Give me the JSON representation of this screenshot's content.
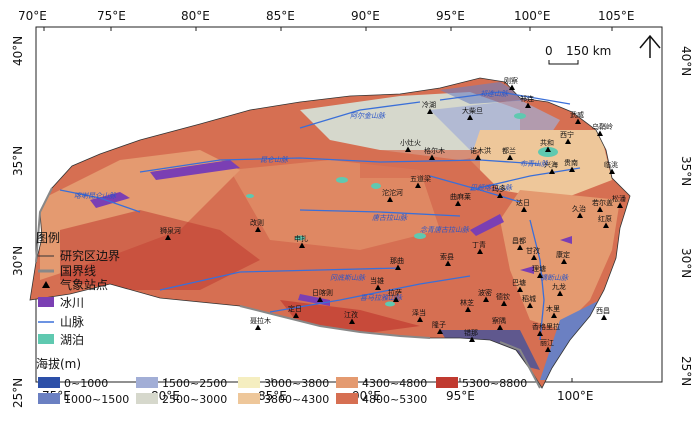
{
  "axes": {
    "top_lon": [
      "70°E",
      "75°E",
      "80°E",
      "85°E",
      "90°E",
      "95°E",
      "100°E",
      "105°E"
    ],
    "bottom_lon": [
      "75°E",
      "80°E",
      "85°E",
      "90°E",
      "95°E",
      "100°E"
    ],
    "left_lat": [
      "40°N",
      "35°N",
      "30°N",
      "25°N"
    ],
    "right_lat": [
      "40°N",
      "35°N",
      "30°N",
      "25°N"
    ]
  },
  "scale_bar": {
    "zero": "0",
    "distance": "150 km"
  },
  "legend": {
    "title": "图例",
    "items": [
      {
        "label": "研究区边界",
        "symbol": "line",
        "color": "#333333"
      },
      {
        "label": "国界线",
        "symbol": "thick-line",
        "color": "#888888"
      },
      {
        "label": "气象站点",
        "symbol": "triangle",
        "color": "#000000"
      },
      {
        "label": "冰川",
        "symbol": "patch",
        "color": "#7b3fb3"
      },
      {
        "label": "山脉",
        "symbol": "line",
        "color": "#3a6fd8"
      },
      {
        "label": "湖泊",
        "symbol": "patch",
        "color": "#5fc9b0"
      }
    ],
    "elevation_title": "海拔(m)",
    "elevation_classes": [
      {
        "label": "0~1000",
        "color": "#2c4fa8"
      },
      {
        "label": "1000~1500",
        "color": "#6b80c2"
      },
      {
        "label": "1500~2500",
        "color": "#a2aed6"
      },
      {
        "label": "2500~3000",
        "color": "#d6d8cc"
      },
      {
        "label": "3000~3800",
        "color": "#f5eec0"
      },
      {
        "label": "3800~4300",
        "color": "#eec79a"
      },
      {
        "label": "4300~4800",
        "color": "#e49a70"
      },
      {
        "label": "4800~5300",
        "color": "#d66f52"
      },
      {
        "label": "5300~8800",
        "color": "#c03a30"
      }
    ]
  },
  "mountain_ranges": [
    "祁连山脉",
    "阿尔金山脉",
    "昆仑山脉",
    "唐古拉山脉",
    "喀喇昆仑山脉",
    "冈底斯山脉",
    "喜马拉雅山脉",
    "横断山脉",
    "巴颜喀拉山脉",
    "念青唐古拉山脉",
    "布青山脉"
  ],
  "stations": [
    "刚察",
    "祁连",
    "冷湖",
    "大柴旦",
    "小灶火",
    "格尔木",
    "诺木洪",
    "都兰",
    "武威",
    "乌鞘岭",
    "西宁",
    "共和",
    "兴海",
    "贵南",
    "临洮",
    "五道梁",
    "沱沱河",
    "曲麻莱",
    "玛多",
    "达日",
    "久治",
    "若尔盖",
    "红原",
    "松潘",
    "狮泉河",
    "改则",
    "申扎",
    "那曲",
    "索县",
    "丁青",
    "昌都",
    "德钦",
    "林芝",
    "拉萨",
    "当雄",
    "日喀则",
    "定日",
    "聂拉木",
    "江孜",
    "泽当",
    "隆子",
    "错那",
    "察隅",
    "波密",
    "甘孜",
    "理塘",
    "巴塘",
    "稻城",
    "康定",
    "九龙",
    "木里",
    "香格里拉",
    "丽江",
    "西昌"
  ]
}
